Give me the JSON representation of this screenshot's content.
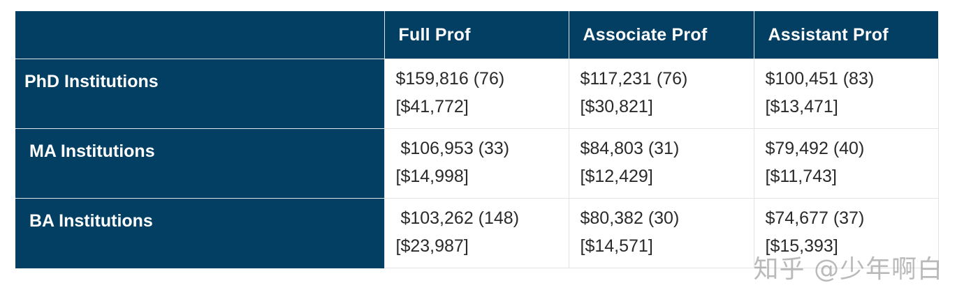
{
  "table": {
    "headers": [
      "",
      "Full Prof",
      "Associate Prof",
      "Assistant Prof"
    ],
    "rows": [
      {
        "label": "PhD Institutions",
        "cells": [
          {
            "value": "$159,816 (76)",
            "sd": "[$41,772]"
          },
          {
            "value": "$117,231 (76)",
            "sd": "[$30,821]"
          },
          {
            "value": "$100,451 (83)",
            "sd": "[$13,471]"
          }
        ]
      },
      {
        "label": "MA Institutions",
        "cells": [
          {
            "value": " $106,953 (33)",
            "sd": "[$14,998]"
          },
          {
            "value": "$84,803 (31)",
            "sd": "[$12,429]"
          },
          {
            "value": "$79,492 (40)",
            "sd": "[$11,743]"
          }
        ]
      },
      {
        "label": "BA Institutions",
        "cells": [
          {
            "value": " $103,262 (148)",
            "sd": "[$23,987]"
          },
          {
            "value": "$80,382 (30)",
            "sd": "[$14,571]"
          },
          {
            "value": "$74,677 (37)",
            "sd": "[$15,393]"
          }
        ]
      }
    ]
  },
  "watermark": "知乎 @少年啊白"
}
